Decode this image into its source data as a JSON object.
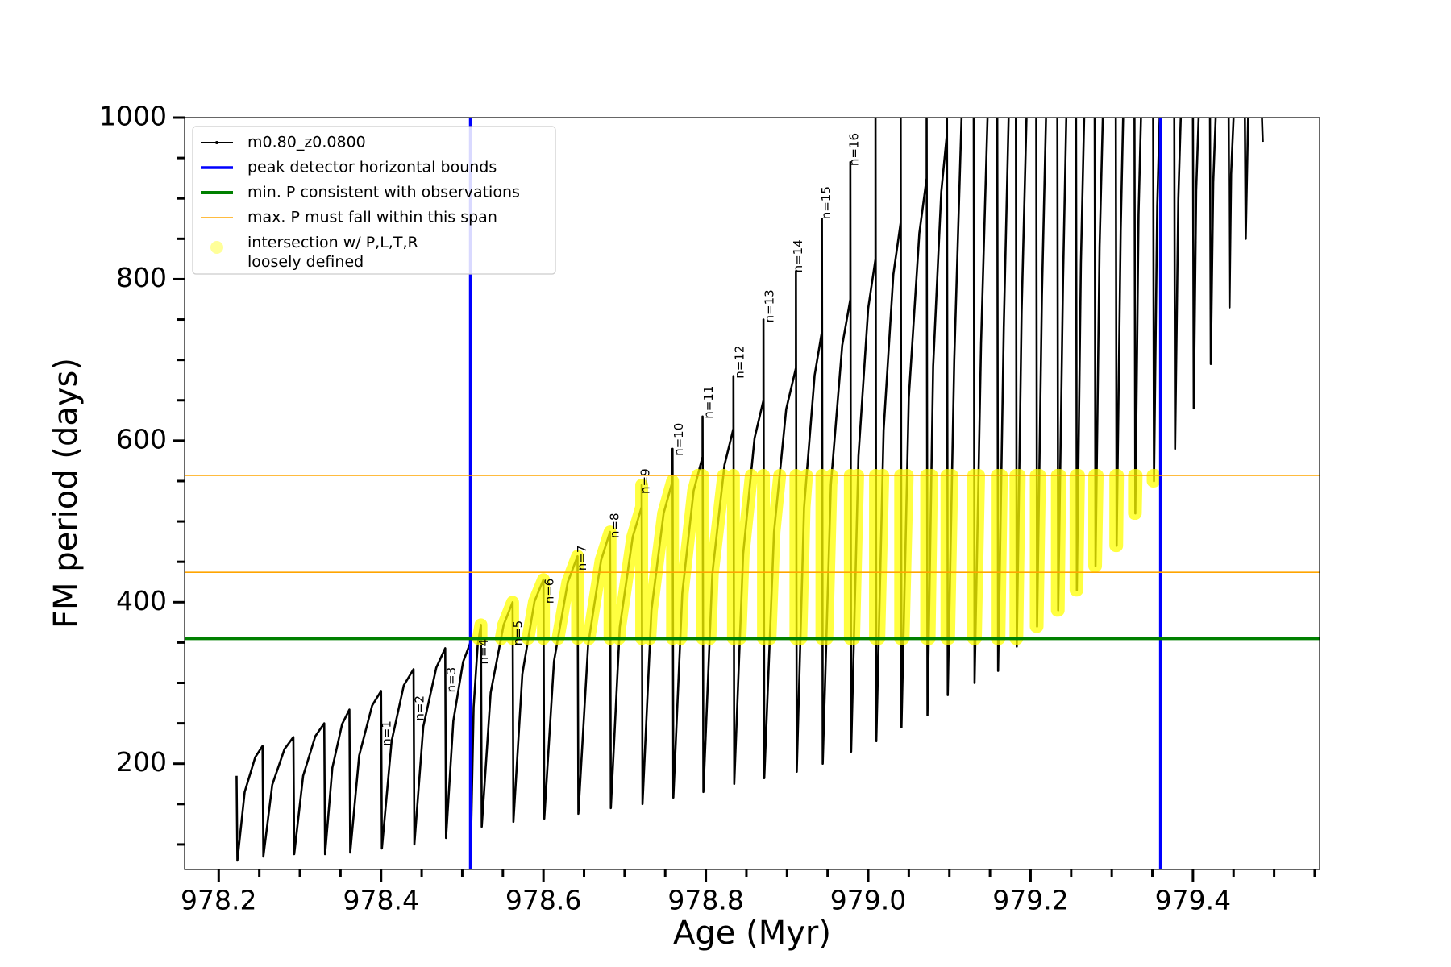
{
  "chart_data": {
    "type": "line",
    "xlabel": "Age (Myr)",
    "ylabel": "FM period (days)",
    "xlim": [
      978.158,
      979.556
    ],
    "ylim": [
      69,
      1000
    ],
    "xticks": [
      978.2,
      978.4,
      978.6,
      978.8,
      {
        "value": 979,
        "label": "979.0"
      },
      979.2,
      979.4
    ],
    "xminorticks": [
      978.25,
      978.3,
      978.35,
      978.45,
      978.5,
      978.55,
      978.65,
      978.7,
      978.75,
      978.85,
      978.9,
      978.95,
      979.05,
      979.1,
      979.15,
      979.25,
      979.3,
      979.35,
      979.45,
      979.5,
      979.55
    ],
    "yticks": [
      200,
      400,
      600,
      800,
      1000
    ],
    "yminorticks": [
      100,
      150,
      250,
      300,
      350,
      450,
      500,
      550,
      650,
      700,
      750,
      850,
      900,
      950
    ],
    "legend": "upper left",
    "series": [
      {
        "name": "m0.80_z0.0800",
        "color": "#000000",
        "x": [
          978.222,
          978.223,
          978.232,
          978.245,
          978.254,
          978.255,
          978.266,
          978.281,
          978.292,
          978.293,
          978.304,
          978.319,
          978.33,
          978.331,
          978.34,
          978.352,
          978.361,
          978.362,
          978.373,
          978.389,
          978.4,
          978.401,
          978.413,
          978.428,
          978.44,
          978.441,
          978.452,
          978.468,
          978.479,
          978.48,
          978.489,
          978.501,
          978.51,
          978.511,
          978.514,
          978.519,
          978.523,
          978.524,
          978.535,
          978.551,
          978.562,
          978.563,
          978.574,
          978.589,
          978.6,
          978.601,
          978.613,
          978.63,
          978.642,
          978.643,
          978.655,
          978.671,
          978.682,
          978.683,
          978.694,
          978.71,
          978.721,
          978.721,
          978.722,
          978.733,
          978.748,
          978.759,
          978.759,
          978.76,
          978.771,
          978.785,
          978.796,
          978.796,
          978.797,
          978.808,
          978.823,
          978.834,
          978.834,
          978.835,
          978.846,
          978.86,
          978.871,
          978.871,
          978.872,
          978.884,
          978.899,
          978.911,
          978.911,
          978.912,
          978.921,
          978.934,
          978.943,
          978.943,
          978.944,
          978.954,
          978.968,
          978.978,
          978.978,
          978.979,
          978.988,
          979.0,
          979.009,
          979.009,
          979.01,
          979.019,
          979.031,
          979.04,
          979.04,
          979.041,
          979.05,
          979.063,
          979.072,
          979.072,
          979.073,
          979.08,
          979.09,
          979.097,
          979.097,
          979.098,
          979.106,
          979.115,
          null,
          979.13,
          979.131,
          979.139,
          979.147,
          null,
          979.159,
          979.16,
          979.167,
          979.173,
          null,
          979.182,
          979.183,
          979.189,
          979.195,
          null,
          979.207,
          979.208,
          979.214,
          979.219,
          null,
          979.233,
          979.234,
          979.24,
          979.244,
          null,
          979.256,
          979.257,
          979.262,
          979.266,
          null,
          979.279,
          979.28,
          979.285,
          979.289,
          null,
          979.305,
          979.306,
          979.311,
          979.314,
          null,
          979.328,
          979.329,
          979.333,
          979.336,
          null,
          979.351,
          979.352,
          979.356,
          979.359,
          null,
          979.377,
          979.378,
          979.382,
          979.385,
          null,
          979.4,
          979.401,
          979.404,
          979.407,
          null,
          979.421,
          979.422,
          979.425,
          979.428,
          null,
          979.444,
          979.445,
          979.447,
          979.45,
          null,
          979.464,
          979.465,
          979.468,
          null,
          979.485,
          979.486
        ],
        "y": [
          185,
          80,
          165,
          208,
          222,
          85,
          174,
          218,
          233,
          88,
          185,
          234,
          250,
          88,
          195,
          249,
          267,
          90,
          210,
          272,
          290,
          95,
          228,
          297,
          317,
          100,
          246,
          319,
          343,
          108,
          253,
          326,
          350,
          120,
          270,
          347,
          372,
          122,
          288,
          372,
          400,
          128,
          311,
          401,
          428,
          132,
          327,
          425,
          457,
          138,
          347,
          452,
          487,
          145,
          369,
          481,
          518,
          545,
          150,
          390,
          510,
          550,
          590,
          158,
          411,
          538,
          580,
          630,
          165,
          435,
          570,
          615,
          680,
          175,
          460,
          603,
          650,
          750,
          182,
          487,
          639,
          690,
          810,
          190,
          517,
          681,
          735,
          875,
          200,
          545,
          718,
          775,
          945,
          215,
          581,
          764,
          825,
          1000,
          228,
          613,
          806,
          870,
          1000,
          245,
          653,
          857,
          925,
          1000,
          260,
          692,
          908,
          980,
          1000,
          285,
          700,
          1000,
          null,
          1000,
          300,
          720,
          1000,
          null,
          1000,
          315,
          740,
          1000,
          null,
          1000,
          345,
          760,
          1000,
          null,
          1000,
          370,
          780,
          1000,
          null,
          1000,
          390,
          800,
          1000,
          null,
          1000,
          415,
          820,
          1000,
          null,
          1000,
          445,
          840,
          1000,
          null,
          1000,
          470,
          860,
          1000,
          null,
          1000,
          510,
          880,
          1000,
          null,
          1000,
          550,
          890,
          1000,
          null,
          1000,
          590,
          900,
          1000,
          null,
          1000,
          640,
          910,
          1000,
          null,
          1000,
          695,
          920,
          1000,
          null,
          1000,
          765,
          930,
          1000,
          null,
          1000,
          850,
          1000,
          null,
          1000,
          970
        ]
      },
      {
        "name": "intersection w/ P,L,T,R\nloosely defined",
        "color": "#ffff00",
        "marker": "circle",
        "x": [
          978.52,
          978.523,
          978.523,
          null,
          978.548,
          978.551,
          978.562,
          978.562,
          null,
          978.581,
          978.589,
          978.6,
          978.6,
          null,
          978.618,
          978.63,
          978.642,
          978.642,
          null,
          978.656,
          978.671,
          978.682,
          978.682,
          null,
          978.693,
          978.694,
          978.71,
          978.721,
          978.721,
          978.721,
          null,
          978.731,
          978.733,
          978.748,
          978.759,
          978.759,
          null,
          978.769,
          978.771,
          978.785,
          978.79,
          null,
          978.796,
          978.796,
          null,
          978.805,
          978.808,
          978.822,
          null,
          978.834,
          978.834,
          null,
          978.842,
          978.846,
          978.856,
          null,
          978.871,
          978.871,
          null,
          978.879,
          978.884,
          978.891,
          null,
          978.911,
          978.911,
          null,
          978.917,
          978.921,
          978.924,
          null,
          978.943,
          978.943,
          null,
          978.949,
          978.954,
          978.955,
          null,
          978.978,
          978.978,
          null,
          978.982,
          978.987,
          null,
          979.009,
          979.009,
          null,
          979.013,
          979.018,
          null,
          979.04,
          979.04,
          null,
          979.043,
          979.048,
          null,
          979.072,
          979.072,
          null,
          979.075,
          979.078,
          null,
          979.097,
          979.097,
          null,
          979.099,
          979.103,
          null,
          979.13,
          979.13,
          null,
          979.132,
          979.136,
          null,
          979.159,
          979.159,
          null,
          979.161,
          979.164,
          null,
          979.182,
          979.182,
          null,
          979.183,
          979.186,
          null,
          979.207,
          979.207,
          null,
          979.208,
          979.211,
          null,
          979.233,
          979.233,
          null,
          979.234,
          979.236,
          null,
          979.256,
          979.256,
          null,
          979.257,
          979.259,
          null,
          979.279,
          979.279,
          null,
          979.28,
          979.282,
          null,
          979.305,
          979.305,
          null,
          979.306,
          979.307,
          null,
          979.328,
          979.328,
          null,
          979.329,
          979.33,
          null,
          979.351,
          979.351,
          null,
          979.352,
          979.353
        ],
        "y": [
          355,
          372,
          355,
          null,
          355,
          372,
          400,
          355,
          null,
          355,
          401,
          428,
          355,
          null,
          355,
          425,
          457,
          355,
          null,
          355,
          452,
          487,
          355,
          null,
          355,
          369,
          481,
          518,
          545,
          355,
          null,
          355,
          390,
          510,
          550,
          355,
          null,
          355,
          411,
          538,
          557,
          null,
          557,
          355,
          null,
          355,
          435,
          557,
          null,
          557,
          355,
          null,
          355,
          460,
          557,
          null,
          557,
          355,
          null,
          355,
          487,
          557,
          null,
          557,
          355,
          null,
          355,
          517,
          557,
          null,
          557,
          355,
          null,
          355,
          545,
          557,
          null,
          557,
          355,
          null,
          355,
          557,
          null,
          557,
          355,
          null,
          355,
          557,
          null,
          557,
          355,
          null,
          355,
          557,
          null,
          557,
          355,
          null,
          355,
          557,
          null,
          557,
          355,
          null,
          355,
          557,
          null,
          557,
          355,
          null,
          355,
          557,
          null,
          557,
          355,
          null,
          355,
          557,
          null,
          557,
          355,
          null,
          355,
          557,
          null,
          557,
          370,
          null,
          370,
          557,
          null,
          557,
          390,
          null,
          390,
          557,
          null,
          557,
          415,
          null,
          415,
          557,
          null,
          557,
          445,
          null,
          445,
          557,
          null,
          557,
          470,
          null,
          470,
          557,
          null,
          557,
          510,
          null,
          510,
          557,
          null,
          557,
          550,
          null,
          550,
          557
        ]
      }
    ],
    "vlines": {
      "name": "peak detector horizontal bounds",
      "color": "#0000ff",
      "values": [
        978.51,
        979.36
      ]
    },
    "hlines": [
      {
        "name": "min. P consistent with observations",
        "color": "#008000",
        "values": [
          355
        ]
      },
      {
        "name": "max. P must fall within this span",
        "color": "#ffa500",
        "values": [
          437,
          557
        ]
      }
    ],
    "annotations": [
      {
        "text": "n=1",
        "x": 978.407,
        "y": 222
      },
      {
        "text": "n=2",
        "x": 978.448,
        "y": 253
      },
      {
        "text": "n=3",
        "x": 978.487,
        "y": 288
      },
      {
        "text": "n=4",
        "x": 978.527,
        "y": 323
      },
      {
        "text": "n=5",
        "x": 978.569,
        "y": 346
      },
      {
        "text": "n=6",
        "x": 978.608,
        "y": 398
      },
      {
        "text": "n=7",
        "x": 978.648,
        "y": 439
      },
      {
        "text": "n=8",
        "x": 978.688,
        "y": 479
      },
      {
        "text": "n=9",
        "x": 978.726,
        "y": 534
      },
      {
        "text": "n=10",
        "x": 978.767,
        "y": 581
      },
      {
        "text": "n=11",
        "x": 978.804,
        "y": 627
      },
      {
        "text": "n=12",
        "x": 978.842,
        "y": 677
      },
      {
        "text": "n=13",
        "x": 978.879,
        "y": 746
      },
      {
        "text": "n=14",
        "x": 978.914,
        "y": 808
      },
      {
        "text": "n=15",
        "x": 978.949,
        "y": 874
      },
      {
        "text": "n=16",
        "x": 978.983,
        "y": 940
      }
    ]
  }
}
